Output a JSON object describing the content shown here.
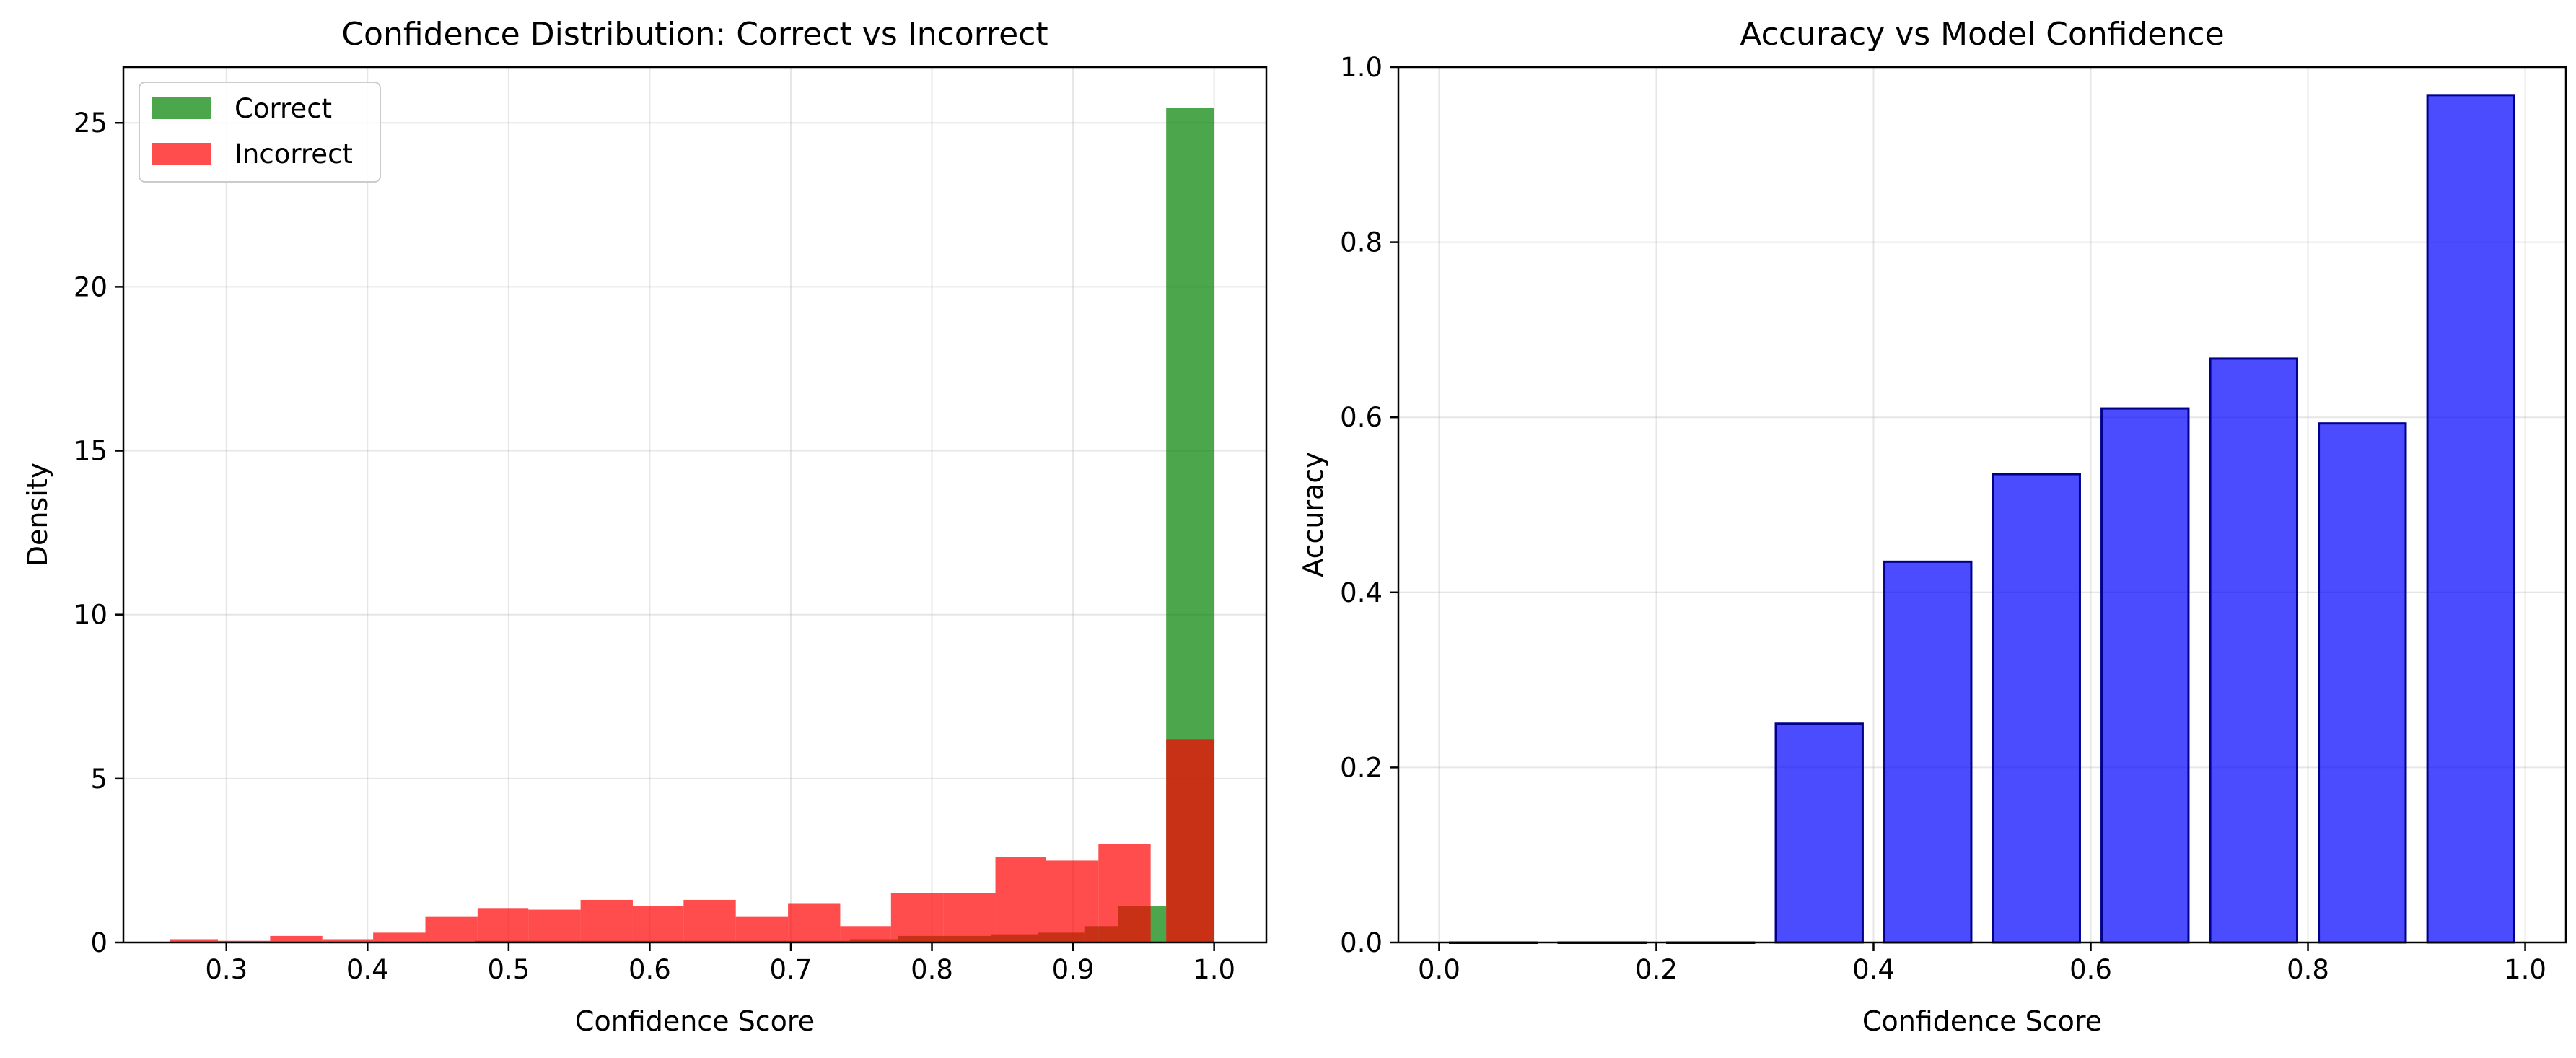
{
  "chart_data": [
    {
      "type": "histogram",
      "title": "Confidence Distribution: Correct vs Incorrect",
      "xlabel": "Confidence Score",
      "ylabel": "Density",
      "xlim": [
        0.227,
        1.037
      ],
      "ylim": [
        0,
        26.7
      ],
      "xticks": [
        "0.3",
        "0.4",
        "0.5",
        "0.6",
        "0.7",
        "0.8",
        "0.9",
        "1.0"
      ],
      "yticks": [
        "0",
        "5",
        "10",
        "15",
        "20",
        "25"
      ],
      "grid": true,
      "legend_position": "top-left",
      "series": [
        {
          "name": "Correct",
          "color": "#008000",
          "bins": [
            {
              "x0": 0.476,
              "x1": 0.609,
              "value": 0.05
            },
            {
              "x0": 0.609,
              "x1": 0.742,
              "value": 0.05
            },
            {
              "x0": 0.742,
              "x1": 0.776,
              "value": 0.1
            },
            {
              "x0": 0.776,
              "x1": 0.809,
              "value": 0.2
            },
            {
              "x0": 0.809,
              "x1": 0.842,
              "value": 0.2
            },
            {
              "x0": 0.842,
              "x1": 0.875,
              "value": 0.25
            },
            {
              "x0": 0.875,
              "x1": 0.908,
              "value": 0.3
            },
            {
              "x0": 0.908,
              "x1": 0.932,
              "value": 0.5
            },
            {
              "x0": 0.932,
              "x1": 0.966,
              "value": 1.1
            },
            {
              "x0": 0.966,
              "x1": 1.0,
              "value": 25.45
            }
          ]
        },
        {
          "name": "Incorrect",
          "color": "#ff0000",
          "bins": [
            {
              "x0": 0.26,
              "x1": 0.294,
              "value": 0.1
            },
            {
              "x0": 0.294,
              "x1": 0.331,
              "value": 0.05
            },
            {
              "x0": 0.331,
              "x1": 0.368,
              "value": 0.2
            },
            {
              "x0": 0.368,
              "x1": 0.404,
              "value": 0.1
            },
            {
              "x0": 0.404,
              "x1": 0.441,
              "value": 0.3
            },
            {
              "x0": 0.441,
              "x1": 0.478,
              "value": 0.8
            },
            {
              "x0": 0.478,
              "x1": 0.514,
              "value": 1.05
            },
            {
              "x0": 0.514,
              "x1": 0.551,
              "value": 1.0
            },
            {
              "x0": 0.551,
              "x1": 0.588,
              "value": 1.3
            },
            {
              "x0": 0.588,
              "x1": 0.624,
              "value": 1.1
            },
            {
              "x0": 0.624,
              "x1": 0.661,
              "value": 1.3
            },
            {
              "x0": 0.661,
              "x1": 0.698,
              "value": 0.8
            },
            {
              "x0": 0.698,
              "x1": 0.735,
              "value": 1.2
            },
            {
              "x0": 0.735,
              "x1": 0.771,
              "value": 0.5
            },
            {
              "x0": 0.771,
              "x1": 0.808,
              "value": 1.5
            },
            {
              "x0": 0.808,
              "x1": 0.845,
              "value": 1.5
            },
            {
              "x0": 0.845,
              "x1": 0.881,
              "value": 2.6
            },
            {
              "x0": 0.881,
              "x1": 0.918,
              "value": 2.5
            },
            {
              "x0": 0.918,
              "x1": 0.955,
              "value": 3.0
            },
            {
              "x0": 0.966,
              "x1": 1.0,
              "value": 6.2
            }
          ]
        }
      ]
    },
    {
      "type": "bar",
      "title": "Accuracy vs Model Confidence",
      "xlabel": "Confidence Score",
      "ylabel": "Accuracy",
      "xlim": [
        -0.0375,
        1.0375
      ],
      "ylim": [
        0,
        1.0
      ],
      "xticks": [
        "0.0",
        "0.2",
        "0.4",
        "0.6",
        "0.8",
        "1.0"
      ],
      "yticks": [
        "0.0",
        "0.2",
        "0.4",
        "0.6",
        "0.8",
        "1.0"
      ],
      "grid": true,
      "color": "#0000ff",
      "bar_width": 0.08,
      "categories": [
        0.05,
        0.15,
        0.25,
        0.35,
        0.45,
        0.55,
        0.65,
        0.75,
        0.85,
        0.95
      ],
      "values": [
        0.0,
        0.0,
        0.0,
        0.25,
        0.435,
        0.535,
        0.61,
        0.667,
        0.593,
        0.968
      ]
    }
  ]
}
